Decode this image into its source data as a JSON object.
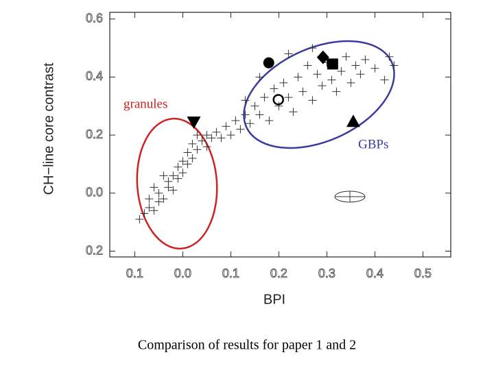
{
  "chart_data": {
    "type": "scatter",
    "xlabel": "BPI",
    "ylabel": "CH−line core contrast",
    "xlim": [
      -0.152,
      0.558
    ],
    "ylim": [
      -0.22,
      0.623
    ],
    "xticks": [
      {
        "value": -0.1,
        "label": "0.1"
      },
      {
        "value": 0.0,
        "label": "0.0"
      },
      0.1,
      0.2,
      0.3,
      0.4,
      0.5
    ],
    "yticks": [
      {
        "value": -0.2,
        "label": "0.2"
      },
      {
        "value": 0.0,
        "label": "0.0"
      },
      0.2,
      0.4,
      0.6
    ],
    "annotations": [
      "granules",
      "GBPs"
    ],
    "caption": "Comparison of results for paper 1 and 2",
    "series": [
      {
        "marker": "plus",
        "color": "#333333",
        "x": [
          -0.09,
          -0.08,
          -0.07,
          -0.06,
          -0.05,
          -0.05,
          -0.04,
          -0.03,
          -0.03,
          -0.02,
          -0.02,
          -0.01,
          -0.01,
          0.0,
          0.0,
          0.01,
          0.01,
          0.02,
          0.02,
          0.03,
          0.03,
          0.04,
          0.05,
          0.05,
          0.06,
          -0.06,
          -0.04,
          -0.07,
          0.07,
          0.08,
          0.09,
          0.1,
          0.11,
          0.12,
          0.13,
          0.14,
          0.15,
          0.16,
          0.17,
          0.18,
          0.19,
          0.2,
          0.21,
          0.22,
          0.23,
          0.24,
          0.25,
          0.26,
          0.27,
          0.28,
          0.29,
          0.3,
          0.31,
          0.32,
          0.33,
          0.34,
          0.35,
          0.36,
          0.37,
          0.38,
          0.4,
          0.42,
          0.43,
          0.44,
          0.27,
          0.22,
          0.16,
          0.13
        ],
        "values": [
          -0.09,
          -0.07,
          -0.05,
          -0.06,
          -0.03,
          0.0,
          -0.02,
          0.02,
          0.04,
          0.01,
          0.06,
          0.05,
          0.09,
          0.07,
          0.11,
          0.1,
          0.14,
          0.12,
          0.17,
          0.15,
          0.2,
          0.18,
          0.2,
          0.16,
          0.19,
          0.02,
          0.06,
          -0.02,
          0.21,
          0.19,
          0.23,
          0.2,
          0.25,
          0.22,
          0.27,
          0.24,
          0.3,
          0.27,
          0.33,
          0.25,
          0.36,
          0.3,
          0.38,
          0.33,
          0.28,
          0.4,
          0.35,
          0.44,
          0.32,
          0.41,
          0.37,
          0.45,
          0.39,
          0.35,
          0.42,
          0.47,
          0.38,
          0.44,
          0.41,
          0.46,
          0.43,
          0.39,
          0.47,
          0.44,
          0.5,
          0.48,
          0.4,
          0.32
        ]
      },
      {
        "marker": "circle",
        "color": "#000000",
        "x": [
          0.179
        ],
        "values": [
          0.449
        ]
      },
      {
        "marker": "open-circle",
        "color": "#000000",
        "x": [
          0.199
        ],
        "values": [
          0.322
        ]
      },
      {
        "marker": "diamond",
        "color": "#000000",
        "x": [
          0.292
        ],
        "values": [
          0.468
        ]
      },
      {
        "marker": "square",
        "color": "#000000",
        "x": [
          0.312
        ],
        "values": [
          0.445
        ]
      },
      {
        "marker": "triangle-up",
        "color": "#000000",
        "x": [
          0.355
        ],
        "values": [
          0.247
        ]
      },
      {
        "marker": "triangle-down",
        "color": "#000000",
        "x": [
          0.023
        ],
        "values": [
          0.245
        ]
      }
    ]
  }
}
